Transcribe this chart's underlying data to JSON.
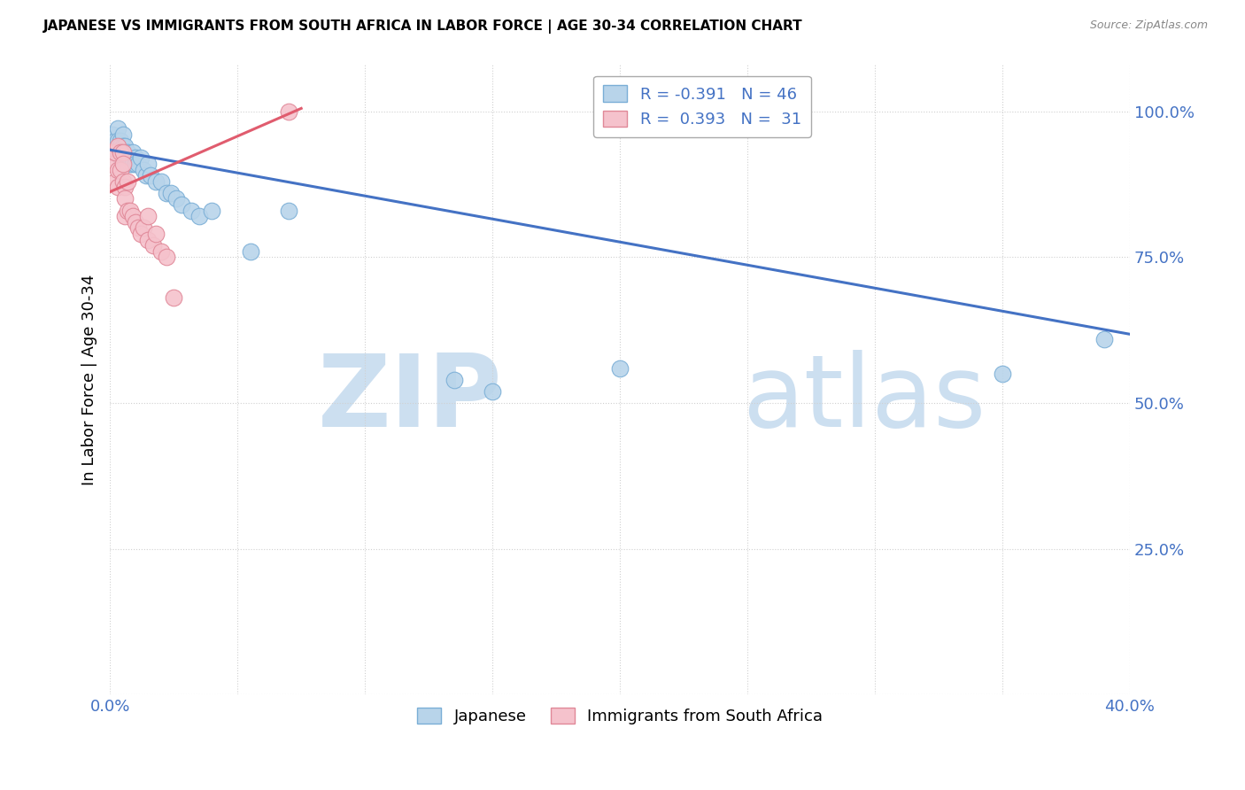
{
  "title": "JAPANESE VS IMMIGRANTS FROM SOUTH AFRICA IN LABOR FORCE | AGE 30-34 CORRELATION CHART",
  "source": "Source: ZipAtlas.com",
  "ylabel": "In Labor Force | Age 30-34",
  "x_min": 0.0,
  "x_max": 0.4,
  "y_min": 0.0,
  "y_max": 1.08,
  "x_ticks": [
    0.0,
    0.05,
    0.1,
    0.15,
    0.2,
    0.25,
    0.3,
    0.35,
    0.4
  ],
  "y_ticks": [
    0.0,
    0.25,
    0.5,
    0.75,
    1.0
  ],
  "y_tick_labels": [
    "",
    "25.0%",
    "50.0%",
    "75.0%",
    "100.0%"
  ],
  "japanese_color": "#b8d4ea",
  "japanese_edge_color": "#7aaed6",
  "sa_color": "#f5c2cc",
  "sa_edge_color": "#e08898",
  "trend_japanese_color": "#4472c4",
  "trend_sa_color": "#e05c6e",
  "R_japanese": -0.391,
  "N_japanese": 46,
  "R_sa": 0.393,
  "N_sa": 31,
  "watermark_zip": "ZIP",
  "watermark_atlas": "atlas",
  "legend_japanese": "Japanese",
  "legend_sa": "Immigrants from South Africa",
  "japanese_x": [
    0.001,
    0.001,
    0.002,
    0.002,
    0.003,
    0.003,
    0.003,
    0.004,
    0.004,
    0.004,
    0.005,
    0.005,
    0.005,
    0.006,
    0.006,
    0.006,
    0.007,
    0.007,
    0.008,
    0.008,
    0.009,
    0.009,
    0.01,
    0.01,
    0.011,
    0.012,
    0.013,
    0.014,
    0.015,
    0.016,
    0.018,
    0.02,
    0.022,
    0.024,
    0.026,
    0.028,
    0.032,
    0.035,
    0.04,
    0.055,
    0.07,
    0.135,
    0.15,
    0.2,
    0.35,
    0.39
  ],
  "japanese_y": [
    0.96,
    0.94,
    0.95,
    0.93,
    0.97,
    0.95,
    0.93,
    0.95,
    0.94,
    0.92,
    0.96,
    0.94,
    0.92,
    0.94,
    0.93,
    0.92,
    0.93,
    0.91,
    0.92,
    0.91,
    0.93,
    0.91,
    0.92,
    0.91,
    0.91,
    0.92,
    0.9,
    0.89,
    0.91,
    0.89,
    0.88,
    0.88,
    0.86,
    0.86,
    0.85,
    0.84,
    0.83,
    0.82,
    0.83,
    0.76,
    0.83,
    0.54,
    0.52,
    0.56,
    0.55,
    0.61
  ],
  "sa_x": [
    0.001,
    0.001,
    0.002,
    0.002,
    0.003,
    0.003,
    0.003,
    0.004,
    0.004,
    0.005,
    0.005,
    0.005,
    0.006,
    0.006,
    0.006,
    0.007,
    0.007,
    0.008,
    0.009,
    0.01,
    0.011,
    0.012,
    0.013,
    0.015,
    0.015,
    0.017,
    0.018,
    0.02,
    0.022,
    0.025,
    0.07
  ],
  "sa_y": [
    0.93,
    0.91,
    0.93,
    0.88,
    0.94,
    0.9,
    0.87,
    0.93,
    0.9,
    0.93,
    0.91,
    0.88,
    0.87,
    0.85,
    0.82,
    0.88,
    0.83,
    0.83,
    0.82,
    0.81,
    0.8,
    0.79,
    0.8,
    0.82,
    0.78,
    0.77,
    0.79,
    0.76,
    0.75,
    0.68,
    1.0
  ],
  "trend_j_x0": 0.0,
  "trend_j_y0": 0.934,
  "trend_j_x1": 0.4,
  "trend_j_y1": 0.618,
  "trend_s_x0": 0.0,
  "trend_s_y0": 0.862,
  "trend_s_x1": 0.075,
  "trend_s_y1": 1.005
}
